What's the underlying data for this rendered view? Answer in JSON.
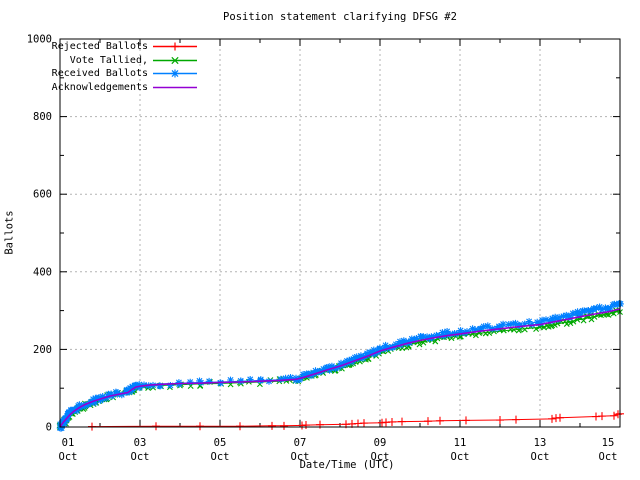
{
  "title": "Position statement clarifying DFSG #2",
  "chart_data": {
    "type": "line",
    "title": "Position statement clarifying DFSG #2",
    "xlabel": "Date/Time (UTC)",
    "ylabel": "Ballots",
    "ylim": [
      0,
      1000
    ],
    "grid": true,
    "legend_position": "top-left",
    "y_ticks": [
      0,
      200,
      400,
      600,
      800,
      1000
    ],
    "x_ticks": [
      {
        "day": 1,
        "label": "01 Oct"
      },
      {
        "day": 3,
        "label": "03 Oct"
      },
      {
        "day": 5,
        "label": "05 Oct"
      },
      {
        "day": 7,
        "label": "07 Oct"
      },
      {
        "day": 9,
        "label": "09 Oct"
      },
      {
        "day": 11,
        "label": "11 Oct"
      },
      {
        "day": 13,
        "label": "13 Oct"
      },
      {
        "day": 15,
        "label": "15 Oct"
      }
    ],
    "series": [
      {
        "name": "Rejected Ballots",
        "color": "#ff0000",
        "marker": "plus",
        "style": "linespoints",
        "points": [
          [
            1.8,
            1
          ],
          [
            3.4,
            2
          ],
          [
            4.5,
            2
          ],
          [
            5.5,
            2
          ],
          [
            6.3,
            3
          ],
          [
            6.6,
            3
          ],
          [
            7.05,
            4
          ],
          [
            7.15,
            5
          ],
          [
            7.5,
            6
          ],
          [
            8.15,
            7
          ],
          [
            8.3,
            8
          ],
          [
            8.45,
            9
          ],
          [
            8.6,
            10
          ],
          [
            9.05,
            11
          ],
          [
            9.15,
            12
          ],
          [
            9.3,
            13
          ],
          [
            9.55,
            14
          ],
          [
            10.2,
            15
          ],
          [
            10.5,
            16
          ],
          [
            11.15,
            17
          ],
          [
            12,
            18
          ],
          [
            12.4,
            19
          ],
          [
            13.3,
            21
          ],
          [
            13.4,
            23
          ],
          [
            13.5,
            24
          ],
          [
            14.4,
            27
          ],
          [
            14.55,
            28
          ],
          [
            14.85,
            29
          ],
          [
            14.95,
            33
          ],
          [
            15,
            34
          ]
        ]
      },
      {
        "name": "Vote Tallied,",
        "color": "#00a800",
        "marker": "cross",
        "style": "linespoints-dense",
        "points": [
          [
            1,
            0
          ],
          [
            1.06,
            6
          ],
          [
            1.12,
            14
          ],
          [
            1.22,
            27
          ],
          [
            1.32,
            37
          ],
          [
            1.47,
            47
          ],
          [
            1.62,
            55
          ],
          [
            1.82,
            63
          ],
          [
            2,
            70
          ],
          [
            2.2,
            77
          ],
          [
            2.45,
            83
          ],
          [
            2.65,
            86
          ],
          [
            2.77,
            92
          ],
          [
            2.87,
            99
          ],
          [
            3,
            102
          ],
          [
            3.2,
            105
          ],
          [
            3.5,
            107
          ],
          [
            4,
            109
          ],
          [
            4.5,
            111
          ],
          [
            5,
            112
          ],
          [
            5.5,
            114
          ],
          [
            6,
            116
          ],
          [
            6.5,
            118
          ],
          [
            6.9,
            121
          ],
          [
            7.1,
            126
          ],
          [
            7.4,
            135
          ],
          [
            7.7,
            145
          ],
          [
            8,
            154
          ],
          [
            8.3,
            165
          ],
          [
            8.7,
            180
          ],
          [
            9,
            192
          ],
          [
            9.3,
            201
          ],
          [
            9.7,
            212
          ],
          [
            10,
            218
          ],
          [
            10.3,
            224
          ],
          [
            10.7,
            231
          ],
          [
            11,
            235
          ],
          [
            11.5,
            242
          ],
          [
            12,
            247
          ],
          [
            12.5,
            252
          ],
          [
            13,
            257
          ],
          [
            13.3,
            263
          ],
          [
            13.7,
            271
          ],
          [
            14,
            277
          ],
          [
            14.3,
            283
          ],
          [
            14.7,
            291
          ],
          [
            15,
            299
          ]
        ]
      },
      {
        "name": "Received Ballots",
        "color": "#0080ff",
        "marker": "star",
        "style": "linespoints-dense",
        "points": [
          [
            1,
            0
          ],
          [
            1.05,
            7
          ],
          [
            1.1,
            16
          ],
          [
            1.2,
            30
          ],
          [
            1.3,
            40
          ],
          [
            1.45,
            50
          ],
          [
            1.6,
            58
          ],
          [
            1.8,
            66
          ],
          [
            2,
            73
          ],
          [
            2.2,
            80
          ],
          [
            2.45,
            86
          ],
          [
            2.65,
            89
          ],
          [
            2.75,
            95
          ],
          [
            2.85,
            102
          ],
          [
            3,
            106
          ],
          [
            3.2,
            109
          ],
          [
            3.5,
            111
          ],
          [
            4,
            113
          ],
          [
            4.5,
            115
          ],
          [
            5,
            116
          ],
          [
            5.5,
            118
          ],
          [
            6,
            120
          ],
          [
            6.5,
            122
          ],
          [
            6.9,
            125
          ],
          [
            7.1,
            130
          ],
          [
            7.4,
            140
          ],
          [
            7.7,
            150
          ],
          [
            8,
            160
          ],
          [
            8.3,
            172
          ],
          [
            8.7,
            187
          ],
          [
            9,
            200
          ],
          [
            9.3,
            210
          ],
          [
            9.7,
            221
          ],
          [
            10,
            228
          ],
          [
            10.3,
            234
          ],
          [
            10.7,
            241
          ],
          [
            11,
            246
          ],
          [
            11.5,
            253
          ],
          [
            12,
            259
          ],
          [
            12.5,
            265
          ],
          [
            13,
            271
          ],
          [
            13.3,
            277
          ],
          [
            13.7,
            286
          ],
          [
            14,
            293
          ],
          [
            14.3,
            300
          ],
          [
            14.7,
            309
          ],
          [
            15,
            318
          ]
        ]
      },
      {
        "name": "Acknowledgements",
        "color": "#9400d3",
        "marker": "none",
        "style": "line",
        "points": [
          [
            1,
            0
          ],
          [
            1.08,
            12
          ],
          [
            1.15,
            20
          ],
          [
            1.25,
            32
          ],
          [
            1.35,
            41
          ],
          [
            1.5,
            51
          ],
          [
            1.65,
            59
          ],
          [
            1.85,
            67
          ],
          [
            2,
            72
          ],
          [
            2.25,
            80
          ],
          [
            2.5,
            85
          ],
          [
            2.7,
            89
          ],
          [
            2.8,
            97
          ],
          [
            2.9,
            103
          ],
          [
            3.05,
            106
          ],
          [
            3.25,
            108
          ],
          [
            3.55,
            110
          ],
          [
            4,
            112
          ],
          [
            4.5,
            113
          ],
          [
            5,
            115
          ],
          [
            5.5,
            116
          ],
          [
            6,
            118
          ],
          [
            6.5,
            120
          ],
          [
            6.9,
            123
          ],
          [
            7.1,
            128
          ],
          [
            7.4,
            138
          ],
          [
            7.7,
            148
          ],
          [
            8,
            157
          ],
          [
            8.3,
            168
          ],
          [
            8.7,
            183
          ],
          [
            9,
            196
          ],
          [
            9.3,
            205
          ],
          [
            9.7,
            216
          ],
          [
            10,
            223
          ],
          [
            10.3,
            229
          ],
          [
            10.7,
            236
          ],
          [
            11,
            240
          ],
          [
            11.5,
            247
          ],
          [
            12,
            253
          ],
          [
            12.5,
            259
          ],
          [
            13,
            264
          ],
          [
            13.3,
            270
          ],
          [
            13.7,
            278
          ],
          [
            14,
            284
          ],
          [
            14.3,
            290
          ],
          [
            14.7,
            297
          ],
          [
            15,
            304
          ]
        ]
      }
    ]
  }
}
